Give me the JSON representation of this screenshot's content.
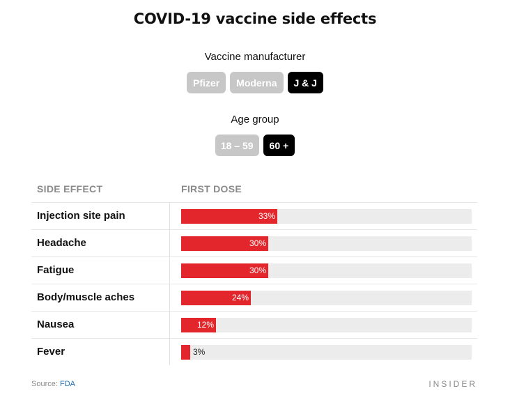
{
  "title": "COVID-19 vaccine side effects",
  "manufacturer": {
    "label": "Vaccine manufacturer",
    "options": [
      "Pfizer",
      "Moderna",
      "J & J"
    ],
    "selected": "J & J"
  },
  "age": {
    "label": "Age group",
    "options": [
      "18 – 59",
      "60 +"
    ],
    "selected": "60 +"
  },
  "columns": {
    "effect": "SIDE EFFECT",
    "dose": "FIRST DOSE"
  },
  "chart_data": {
    "type": "bar",
    "orientation": "horizontal",
    "categories": [
      "Injection site pain",
      "Headache",
      "Fatigue",
      "Body/muscle aches",
      "Nausea",
      "Fever"
    ],
    "values": [
      33,
      30,
      30,
      24,
      12,
      3
    ],
    "value_labels": [
      "33%",
      "30%",
      "30%",
      "24%",
      "12%",
      "3%"
    ],
    "xlim": [
      0,
      100
    ],
    "title": "COVID-19 vaccine side effects",
    "series_header": "FIRST DOSE"
  },
  "colors": {
    "bar": "#e3262b",
    "track": "#ececec",
    "active_pill": "#000000",
    "inactive_pill": "#c7c7c7"
  },
  "source": {
    "prefix": "Source: ",
    "link": "FDA"
  },
  "brand": "INSIDER"
}
